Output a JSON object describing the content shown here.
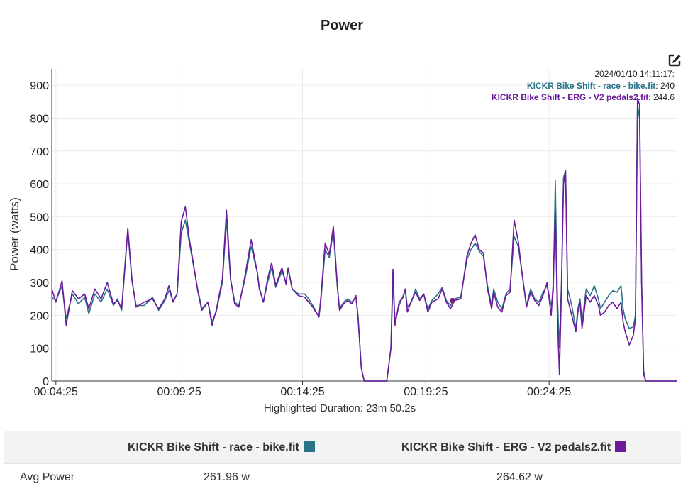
{
  "chart_data": {
    "type": "line",
    "title": "Power",
    "ylabel": "Power (watts)",
    "xlabel": "",
    "ylim": [
      0,
      950
    ],
    "yticks": [
      0,
      100,
      200,
      300,
      400,
      500,
      600,
      700,
      800,
      900
    ],
    "x_range_seconds": [
      255,
      1777
    ],
    "x_ticks": [
      {
        "t": 265,
        "label": "00:04:25"
      },
      {
        "t": 565,
        "label": "00:09:25"
      },
      {
        "t": 865,
        "label": "00:14:25"
      },
      {
        "t": 1165,
        "label": "00:19:25"
      },
      {
        "t": 1465,
        "label": "00:24:25"
      }
    ],
    "grid": true,
    "highlighted_duration": "Highlighted Duration: 23m 50.2s",
    "tooltip": {
      "time": "2024/01/10 14:11:17:",
      "entries": [
        {
          "name": "KICKR Bike Shift - race - bike.fit",
          "value": "240"
        },
        {
          "name": "KICKR Bike Shift - ERG - V2 pedals2.fit",
          "value": "244.6"
        }
      ],
      "t": 1230
    },
    "series": [
      {
        "name": "KICKR Bike Shift - race - bike.fit",
        "color": "#2a7389",
        "points": [
          [
            255,
            255
          ],
          [
            265,
            245
          ],
          [
            280,
            290
          ],
          [
            290,
            190
          ],
          [
            305,
            265
          ],
          [
            320,
            235
          ],
          [
            335,
            255
          ],
          [
            345,
            205
          ],
          [
            360,
            265
          ],
          [
            375,
            240
          ],
          [
            390,
            280
          ],
          [
            405,
            230
          ],
          [
            415,
            250
          ],
          [
            425,
            215
          ],
          [
            440,
            460
          ],
          [
            450,
            305
          ],
          [
            460,
            230
          ],
          [
            480,
            230
          ],
          [
            500,
            255
          ],
          [
            515,
            215
          ],
          [
            530,
            245
          ],
          [
            540,
            275
          ],
          [
            550,
            245
          ],
          [
            560,
            265
          ],
          [
            570,
            450
          ],
          [
            580,
            490
          ],
          [
            590,
            420
          ],
          [
            600,
            350
          ],
          [
            610,
            280
          ],
          [
            620,
            220
          ],
          [
            635,
            240
          ],
          [
            645,
            180
          ],
          [
            655,
            210
          ],
          [
            670,
            300
          ],
          [
            680,
            490
          ],
          [
            690,
            310
          ],
          [
            700,
            240
          ],
          [
            710,
            230
          ],
          [
            725,
            310
          ],
          [
            740,
            410
          ],
          [
            755,
            330
          ],
          [
            760,
            285
          ],
          [
            770,
            240
          ],
          [
            780,
            300
          ],
          [
            790,
            345
          ],
          [
            800,
            285
          ],
          [
            815,
            335
          ],
          [
            825,
            300
          ],
          [
            830,
            340
          ],
          [
            840,
            280
          ],
          [
            855,
            265
          ],
          [
            870,
            265
          ],
          [
            880,
            250
          ],
          [
            890,
            230
          ],
          [
            905,
            195
          ],
          [
            910,
            250
          ],
          [
            920,
            400
          ],
          [
            930,
            375
          ],
          [
            940,
            455
          ],
          [
            950,
            280
          ],
          [
            955,
            220
          ],
          [
            965,
            240
          ],
          [
            975,
            250
          ],
          [
            985,
            240
          ],
          [
            995,
            255
          ],
          [
            1000,
            200
          ],
          [
            1008,
            40
          ],
          [
            1015,
            0
          ],
          [
            1030,
            0
          ],
          [
            1040,
            0
          ],
          [
            1060,
            0
          ],
          [
            1070,
            0
          ],
          [
            1080,
            100
          ],
          [
            1085,
            300
          ],
          [
            1090,
            180
          ],
          [
            1100,
            230
          ],
          [
            1110,
            260
          ],
          [
            1115,
            280
          ],
          [
            1120,
            225
          ],
          [
            1130,
            240
          ],
          [
            1140,
            280
          ],
          [
            1150,
            250
          ],
          [
            1160,
            265
          ],
          [
            1170,
            220
          ],
          [
            1180,
            245
          ],
          [
            1195,
            265
          ],
          [
            1205,
            285
          ],
          [
            1215,
            245
          ],
          [
            1225,
            230
          ],
          [
            1235,
            250
          ],
          [
            1250,
            255
          ],
          [
            1265,
            370
          ],
          [
            1275,
            400
          ],
          [
            1285,
            420
          ],
          [
            1295,
            395
          ],
          [
            1305,
            380
          ],
          [
            1315,
            290
          ],
          [
            1325,
            230
          ],
          [
            1330,
            280
          ],
          [
            1340,
            240
          ],
          [
            1350,
            220
          ],
          [
            1360,
            265
          ],
          [
            1370,
            280
          ],
          [
            1380,
            440
          ],
          [
            1390,
            410
          ],
          [
            1400,
            320
          ],
          [
            1410,
            230
          ],
          [
            1420,
            280
          ],
          [
            1430,
            250
          ],
          [
            1440,
            240
          ],
          [
            1450,
            270
          ],
          [
            1460,
            290
          ],
          [
            1470,
            230
          ],
          [
            1475,
            270
          ],
          [
            1480,
            610
          ],
          [
            1485,
            260
          ],
          [
            1490,
            100
          ],
          [
            1495,
            300
          ],
          [
            1500,
            620
          ],
          [
            1505,
            640
          ],
          [
            1510,
            280
          ],
          [
            1520,
            230
          ],
          [
            1530,
            160
          ],
          [
            1535,
            220
          ],
          [
            1540,
            250
          ],
          [
            1545,
            180
          ],
          [
            1555,
            280
          ],
          [
            1565,
            260
          ],
          [
            1575,
            290
          ],
          [
            1585,
            250
          ],
          [
            1590,
            220
          ],
          [
            1600,
            240
          ],
          [
            1610,
            260
          ],
          [
            1620,
            275
          ],
          [
            1630,
            270
          ],
          [
            1640,
            290
          ],
          [
            1645,
            220
          ],
          [
            1650,
            190
          ],
          [
            1660,
            160
          ],
          [
            1670,
            165
          ],
          [
            1675,
            200
          ],
          [
            1680,
            840
          ],
          [
            1685,
            800
          ],
          [
            1690,
            300
          ],
          [
            1695,
            30
          ],
          [
            1700,
            0
          ],
          [
            1715,
            0
          ],
          [
            1777,
            0
          ]
        ]
      },
      {
        "name": "KICKR Bike Shift - ERG - V2 pedals2.fit",
        "color": "#6a1a9a",
        "points": [
          [
            255,
            280
          ],
          [
            265,
            240
          ],
          [
            280,
            305
          ],
          [
            290,
            170
          ],
          [
            305,
            275
          ],
          [
            320,
            250
          ],
          [
            335,
            265
          ],
          [
            345,
            220
          ],
          [
            360,
            280
          ],
          [
            375,
            250
          ],
          [
            390,
            300
          ],
          [
            405,
            235
          ],
          [
            415,
            245
          ],
          [
            425,
            220
          ],
          [
            440,
            465
          ],
          [
            450,
            310
          ],
          [
            460,
            225
          ],
          [
            480,
            240
          ],
          [
            500,
            250
          ],
          [
            515,
            220
          ],
          [
            530,
            250
          ],
          [
            540,
            290
          ],
          [
            550,
            240
          ],
          [
            560,
            265
          ],
          [
            570,
            485
          ],
          [
            580,
            530
          ],
          [
            590,
            430
          ],
          [
            600,
            355
          ],
          [
            610,
            275
          ],
          [
            620,
            215
          ],
          [
            635,
            240
          ],
          [
            645,
            170
          ],
          [
            655,
            215
          ],
          [
            670,
            310
          ],
          [
            680,
            520
          ],
          [
            690,
            310
          ],
          [
            700,
            235
          ],
          [
            710,
            225
          ],
          [
            725,
            320
          ],
          [
            740,
            430
          ],
          [
            755,
            330
          ],
          [
            760,
            280
          ],
          [
            770,
            240
          ],
          [
            780,
            310
          ],
          [
            790,
            360
          ],
          [
            800,
            290
          ],
          [
            815,
            345
          ],
          [
            825,
            295
          ],
          [
            830,
            345
          ],
          [
            840,
            280
          ],
          [
            855,
            260
          ],
          [
            870,
            255
          ],
          [
            880,
            240
          ],
          [
            890,
            225
          ],
          [
            905,
            195
          ],
          [
            910,
            260
          ],
          [
            920,
            420
          ],
          [
            930,
            385
          ],
          [
            940,
            470
          ],
          [
            950,
            285
          ],
          [
            955,
            215
          ],
          [
            965,
            235
          ],
          [
            975,
            245
          ],
          [
            985,
            235
          ],
          [
            995,
            260
          ],
          [
            1000,
            195
          ],
          [
            1008,
            40
          ],
          [
            1015,
            0
          ],
          [
            1030,
            0
          ],
          [
            1040,
            0
          ],
          [
            1060,
            0
          ],
          [
            1070,
            0
          ],
          [
            1080,
            100
          ],
          [
            1085,
            340
          ],
          [
            1090,
            170
          ],
          [
            1100,
            240
          ],
          [
            1110,
            255
          ],
          [
            1115,
            280
          ],
          [
            1120,
            210
          ],
          [
            1130,
            245
          ],
          [
            1140,
            270
          ],
          [
            1150,
            245
          ],
          [
            1160,
            265
          ],
          [
            1170,
            210
          ],
          [
            1180,
            240
          ],
          [
            1195,
            250
          ],
          [
            1205,
            280
          ],
          [
            1215,
            240
          ],
          [
            1225,
            220
          ],
          [
            1235,
            245
          ],
          [
            1250,
            250
          ],
          [
            1265,
            380
          ],
          [
            1275,
            420
          ],
          [
            1285,
            445
          ],
          [
            1295,
            400
          ],
          [
            1305,
            390
          ],
          [
            1315,
            280
          ],
          [
            1325,
            220
          ],
          [
            1330,
            270
          ],
          [
            1340,
            225
          ],
          [
            1350,
            210
          ],
          [
            1360,
            260
          ],
          [
            1370,
            270
          ],
          [
            1380,
            490
          ],
          [
            1390,
            425
          ],
          [
            1400,
            320
          ],
          [
            1410,
            225
          ],
          [
            1420,
            270
          ],
          [
            1430,
            245
          ],
          [
            1440,
            230
          ],
          [
            1450,
            260
          ],
          [
            1460,
            300
          ],
          [
            1470,
            200
          ],
          [
            1475,
            300
          ],
          [
            1480,
            520
          ],
          [
            1485,
            200
          ],
          [
            1490,
            20
          ],
          [
            1495,
            280
          ],
          [
            1500,
            600
          ],
          [
            1505,
            640
          ],
          [
            1510,
            250
          ],
          [
            1520,
            200
          ],
          [
            1530,
            150
          ],
          [
            1535,
            210
          ],
          [
            1540,
            240
          ],
          [
            1545,
            160
          ],
          [
            1555,
            260
          ],
          [
            1565,
            240
          ],
          [
            1575,
            260
          ],
          [
            1585,
            230
          ],
          [
            1590,
            200
          ],
          [
            1600,
            210
          ],
          [
            1610,
            230
          ],
          [
            1620,
            240
          ],
          [
            1630,
            220
          ],
          [
            1640,
            240
          ],
          [
            1645,
            180
          ],
          [
            1650,
            150
          ],
          [
            1660,
            110
          ],
          [
            1670,
            140
          ],
          [
            1675,
            190
          ],
          [
            1680,
            860
          ],
          [
            1685,
            840
          ],
          [
            1690,
            300
          ],
          [
            1695,
            20
          ],
          [
            1700,
            0
          ],
          [
            1715,
            0
          ],
          [
            1777,
            0
          ]
        ]
      }
    ]
  },
  "summary": {
    "columns": [
      {
        "label": "KICKR Bike Shift - race - bike.fit",
        "color": "#2a7389"
      },
      {
        "label": "KICKR Bike Shift - ERG - V2 pedals2.fit",
        "color": "#6a1a9a"
      }
    ],
    "rows": [
      {
        "label": "Avg Power",
        "values": [
          "261.96 w",
          "264.62 w"
        ]
      }
    ]
  },
  "icons": {
    "edit": "edit-icon"
  }
}
